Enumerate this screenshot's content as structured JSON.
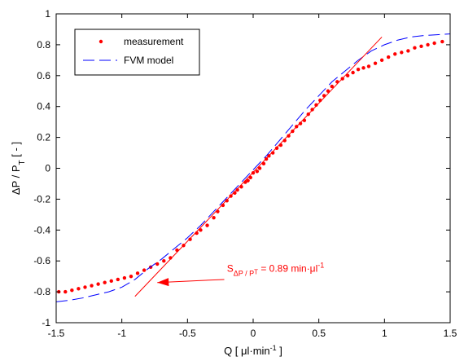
{
  "chart_data": {
    "type": "scatter",
    "xlim": [
      -1.5,
      1.5
    ],
    "ylim": [
      -1,
      1
    ],
    "x_ticks": [
      "-1.5",
      "-1",
      "-0.5",
      "0",
      "0.5",
      "1",
      "1.5"
    ],
    "y_ticks": [
      "-1",
      "-0.8",
      "-0.6",
      "-0.4",
      "-0.2",
      "0",
      "0.2",
      "0.4",
      "0.6",
      "0.8",
      "1"
    ],
    "x_tick_values": [
      -1.5,
      -1,
      -0.5,
      0,
      0.5,
      1,
      1.5
    ],
    "y_tick_values": [
      -1,
      -0.8,
      -0.6,
      -0.4,
      -0.2,
      0,
      0.2,
      0.4,
      0.6,
      0.8,
      1
    ],
    "xlabel": {
      "prefix": "Q  [ μl·min",
      "sup": "-1",
      "suffix": " ]"
    },
    "ylabel": {
      "part1": "ΔP / P",
      "sub": "T",
      "part2": "   [ - ]"
    },
    "grid": false,
    "legend_position": "top-left",
    "series": [
      {
        "name": "measurement",
        "style": "markers",
        "color": "#ff0000",
        "points": [
          [
            -1.48,
            -0.8
          ],
          [
            -1.43,
            -0.8
          ],
          [
            -1.38,
            -0.79
          ],
          [
            -1.33,
            -0.78
          ],
          [
            -1.28,
            -0.77
          ],
          [
            -1.23,
            -0.76
          ],
          [
            -1.18,
            -0.75
          ],
          [
            -1.13,
            -0.74
          ],
          [
            -1.08,
            -0.73
          ],
          [
            -1.03,
            -0.72
          ],
          [
            -0.98,
            -0.71
          ],
          [
            -0.93,
            -0.7
          ],
          [
            -0.88,
            -0.68
          ],
          [
            -0.83,
            -0.66
          ],
          [
            -0.78,
            -0.64
          ],
          [
            -0.73,
            -0.62
          ],
          [
            -0.68,
            -0.6
          ],
          [
            -0.63,
            -0.58
          ],
          [
            -0.58,
            -0.53
          ],
          [
            -0.53,
            -0.5
          ],
          [
            -0.48,
            -0.46
          ],
          [
            -0.43,
            -0.42
          ],
          [
            -0.4,
            -0.4
          ],
          [
            -0.35,
            -0.37
          ],
          [
            -0.3,
            -0.32
          ],
          [
            -0.27,
            -0.28
          ],
          [
            -0.23,
            -0.24
          ],
          [
            -0.2,
            -0.21
          ],
          [
            -0.17,
            -0.18
          ],
          [
            -0.14,
            -0.16
          ],
          [
            -0.12,
            -0.14
          ],
          [
            -0.09,
            -0.12
          ],
          [
            -0.06,
            -0.09
          ],
          [
            -0.04,
            -0.08
          ],
          [
            -0.02,
            -0.06
          ],
          [
            0.0,
            -0.03
          ],
          [
            0.03,
            -0.02
          ],
          [
            0.05,
            0.0
          ],
          [
            0.08,
            0.03
          ],
          [
            0.1,
            0.06
          ],
          [
            0.12,
            0.08
          ],
          [
            0.15,
            0.1
          ],
          [
            0.18,
            0.13
          ],
          [
            0.21,
            0.15
          ],
          [
            0.24,
            0.18
          ],
          [
            0.27,
            0.21
          ],
          [
            0.3,
            0.24
          ],
          [
            0.33,
            0.27
          ],
          [
            0.36,
            0.29
          ],
          [
            0.39,
            0.31
          ],
          [
            0.42,
            0.35
          ],
          [
            0.45,
            0.38
          ],
          [
            0.48,
            0.41
          ],
          [
            0.51,
            0.44
          ],
          [
            0.54,
            0.47
          ],
          [
            0.57,
            0.5
          ],
          [
            0.6,
            0.53
          ],
          [
            0.64,
            0.56
          ],
          [
            0.68,
            0.58
          ],
          [
            0.72,
            0.6
          ],
          [
            0.76,
            0.62
          ],
          [
            0.8,
            0.64
          ],
          [
            0.84,
            0.65
          ],
          [
            0.88,
            0.66
          ],
          [
            0.93,
            0.68
          ],
          [
            0.98,
            0.7
          ],
          [
            1.03,
            0.72
          ],
          [
            1.08,
            0.74
          ],
          [
            1.13,
            0.75
          ],
          [
            1.18,
            0.76
          ],
          [
            1.23,
            0.78
          ],
          [
            1.28,
            0.79
          ],
          [
            1.33,
            0.8
          ],
          [
            1.38,
            0.81
          ],
          [
            1.44,
            0.82
          ]
        ]
      },
      {
        "name": "FVM model",
        "style": "dashed-line",
        "color": "#0000ff",
        "points": [
          [
            -1.5,
            -0.865
          ],
          [
            -1.4,
            -0.855
          ],
          [
            -1.3,
            -0.84
          ],
          [
            -1.2,
            -0.82
          ],
          [
            -1.1,
            -0.8
          ],
          [
            -1.0,
            -0.77
          ],
          [
            -0.9,
            -0.72
          ],
          [
            -0.8,
            -0.65
          ],
          [
            -0.7,
            -0.59
          ],
          [
            -0.6,
            -0.52
          ],
          [
            -0.5,
            -0.45
          ],
          [
            -0.4,
            -0.37
          ],
          [
            -0.3,
            -0.28
          ],
          [
            -0.2,
            -0.19
          ],
          [
            -0.1,
            -0.1
          ],
          [
            0.0,
            -0.01
          ],
          [
            0.1,
            0.08
          ],
          [
            0.2,
            0.18
          ],
          [
            0.3,
            0.28
          ],
          [
            0.4,
            0.38
          ],
          [
            0.5,
            0.47
          ],
          [
            0.6,
            0.56
          ],
          [
            0.7,
            0.63
          ],
          [
            0.8,
            0.7
          ],
          [
            0.9,
            0.76
          ],
          [
            1.0,
            0.8
          ],
          [
            1.1,
            0.83
          ],
          [
            1.2,
            0.85
          ],
          [
            1.3,
            0.86
          ],
          [
            1.4,
            0.865
          ],
          [
            1.5,
            0.87
          ]
        ]
      },
      {
        "style": "line",
        "color": "#ff0000",
        "points": [
          [
            -0.9,
            -0.83
          ],
          [
            0.98,
            0.85
          ]
        ]
      }
    ],
    "annotation": {
      "text_main": "S",
      "text_sub": "ΔP / P",
      "text_subsub": "T",
      "text_value": " = 0.89 min·μl",
      "text_sup": "-1",
      "color": "#ff0000",
      "arrow_from": [
        -0.22,
        -0.72
      ],
      "arrow_to": [
        -0.73,
        -0.74
      ],
      "text_anchor_data": [
        -0.2,
        -0.67
      ]
    }
  }
}
